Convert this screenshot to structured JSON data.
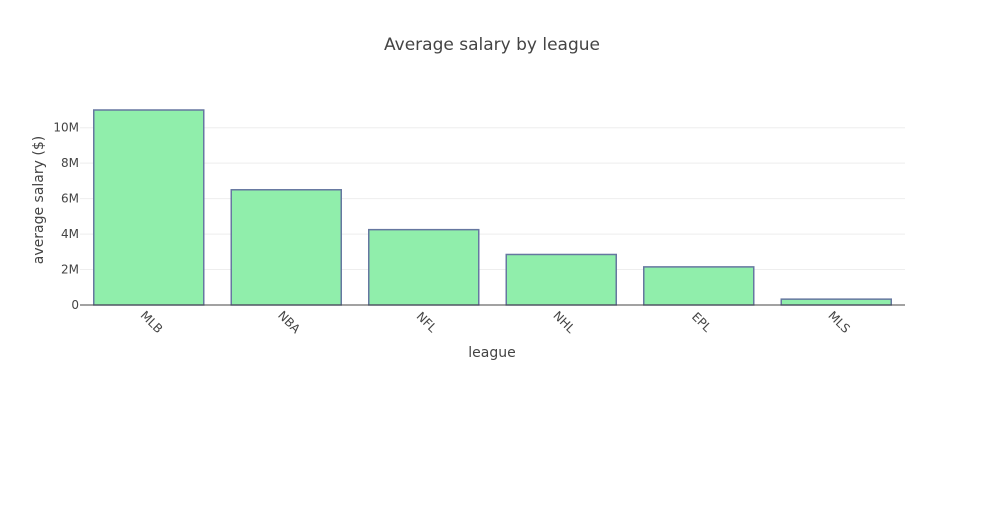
{
  "chart_data": {
    "type": "bar",
    "title": "Average salary by league",
    "xlabel": "league",
    "ylabel": "average salary ($)",
    "categories": [
      "MLB",
      "NBA",
      "NFL",
      "NHL",
      "EPL",
      "MLS"
    ],
    "values": [
      11000000,
      6500000,
      4250000,
      2850000,
      2150000,
      330000
    ],
    "ylim": [
      0,
      11000000
    ],
    "yticks": [
      0,
      2000000,
      4000000,
      6000000,
      8000000,
      10000000
    ],
    "ytick_labels": [
      "0",
      "2M",
      "4M",
      "6M",
      "8M",
      "10M"
    ],
    "grid": true,
    "legend": "none",
    "colors": {
      "bar_fill": "#90eeab",
      "bar_outline": "#6677a0",
      "grid": "#eeeeee",
      "axis_line": "#444444",
      "text": "#444444"
    }
  }
}
